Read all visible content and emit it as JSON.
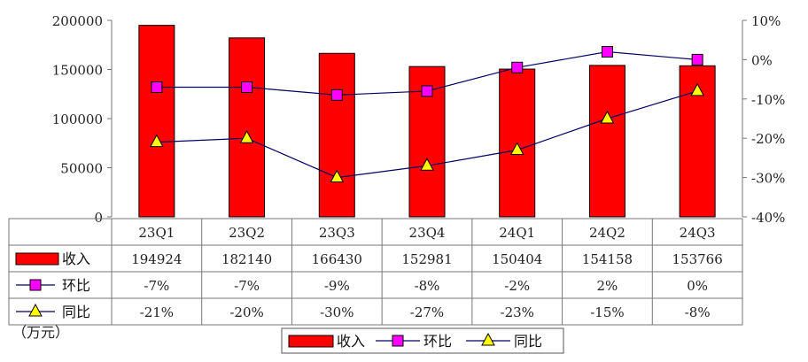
{
  "chart_data": {
    "type": "bar",
    "categories": [
      "23Q1",
      "23Q2",
      "23Q3",
      "23Q4",
      "24Q1",
      "24Q2",
      "24Q3"
    ],
    "series": [
      {
        "name": "收入",
        "kind": "bar",
        "axis": "left",
        "values": [
          194924,
          182140,
          166430,
          152981,
          150404,
          154158,
          153766
        ],
        "color": "#ff0000"
      },
      {
        "name": "环比",
        "kind": "line",
        "axis": "right",
        "values": [
          -7,
          -7,
          -9,
          -8,
          -2,
          2,
          0
        ],
        "labels": [
          "-7%",
          "-7%",
          "-9%",
          "-8%",
          "-2%",
          "2%",
          "0%"
        ],
        "color": "#ff00ff",
        "marker": "square"
      },
      {
        "name": "同比",
        "kind": "line",
        "axis": "right",
        "values": [
          -21,
          -20,
          -30,
          -27,
          -23,
          -15,
          -8
        ],
        "labels": [
          "-21%",
          "-20%",
          "-30%",
          "-27%",
          "-23%",
          "-15%",
          "-8%"
        ],
        "color": "#ffff00",
        "marker": "triangle"
      }
    ],
    "y_left": {
      "ylim": [
        0,
        200000
      ],
      "ticks": [
        "0",
        "50000",
        "100000",
        "150000",
        "200000"
      ]
    },
    "y_right": {
      "ylim": [
        -40,
        10
      ],
      "ticks": [
        "-40%",
        "-30%",
        "-20%",
        "-10%",
        "0%",
        "10%"
      ]
    },
    "unit_label": "（万元）",
    "legend": [
      "收入",
      "环比",
      "同比"
    ],
    "legend_position": "bottom",
    "data_table": true,
    "grid": false
  }
}
